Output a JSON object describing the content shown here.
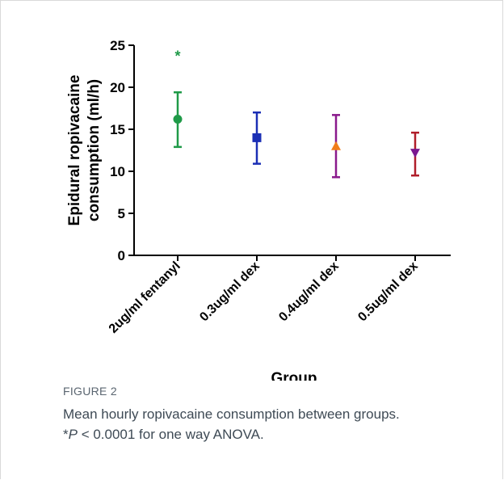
{
  "chart_data": {
    "type": "scatter",
    "title": "",
    "xlabel": "Group",
    "ylabel_lines": [
      "Epidural ropivacaine",
      "consumption (ml/h)"
    ],
    "ylim": [
      0,
      25
    ],
    "yticks": [
      0,
      5,
      10,
      15,
      20,
      25
    ],
    "categories": [
      "2ug/ml fentanyl",
      "0.3ug/ml dex",
      "0.4ug/ml dex",
      "0.5ug/ml dex"
    ],
    "series": [
      {
        "category": "2ug/ml fentanyl",
        "mean": 16.2,
        "lower": 12.9,
        "upper": 19.4,
        "marker": "circle",
        "color": "#1f9a48"
      },
      {
        "category": "0.3ug/ml dex",
        "mean": 14.0,
        "lower": 10.9,
        "upper": 17.0,
        "marker": "square",
        "color": "#1b2fb5",
        "error_color": "#1b2fb5"
      },
      {
        "category": "0.4ug/ml dex",
        "mean": 13.0,
        "lower": 9.3,
        "upper": 16.7,
        "marker": "triangle-up",
        "color": "#f07d1a",
        "error_color": "#8a1a8c"
      },
      {
        "category": "0.5ug/ml dex",
        "mean": 12.2,
        "lower": 9.5,
        "upper": 14.6,
        "marker": "triangle-down",
        "color": "#7a1890",
        "error_color": "#b01e2a"
      }
    ],
    "annotations": [
      {
        "text": "*",
        "category": "2ug/ml fentanyl",
        "y": 24.2,
        "color": "#1f9a48"
      }
    ],
    "grid": false
  },
  "caption": {
    "figure_label": "FIGURE 2",
    "line1": "Mean hourly ropivacaine consumption between groups.",
    "line2_prefix": "*",
    "line2_italic": "P",
    "line2_rest": " < 0.0001 for one way ANOVA."
  }
}
